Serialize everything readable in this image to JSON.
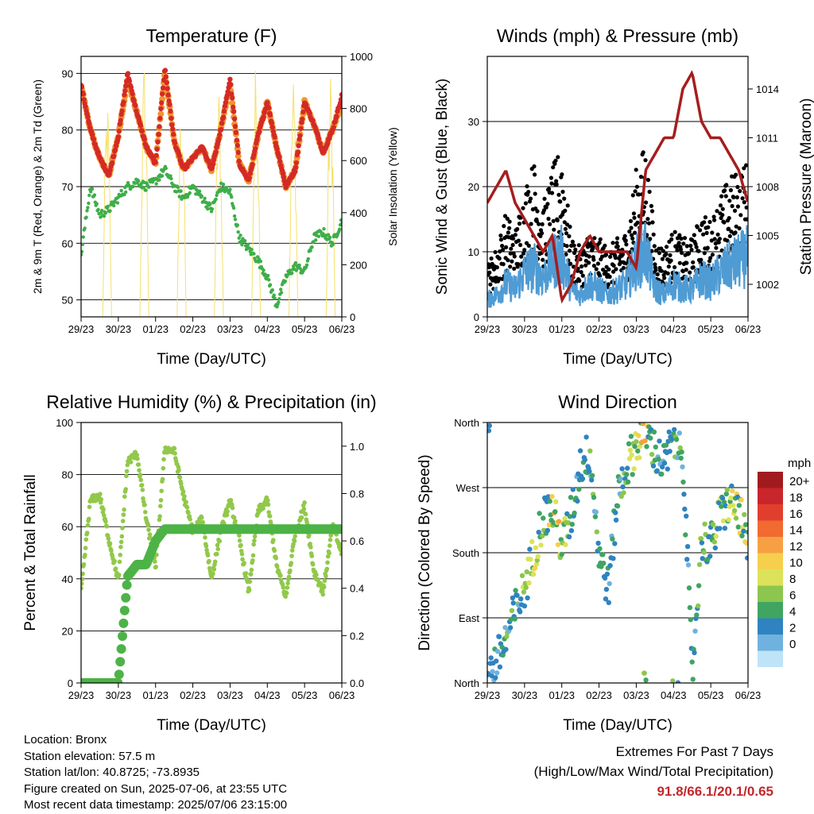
{
  "figure": {
    "time_ticks": [
      "29/23",
      "30/23",
      "01/23",
      "02/23",
      "03/23",
      "04/23",
      "05/23",
      "06/23"
    ],
    "time_xlabel": "Time (Day/UTC)"
  },
  "chart_data": [
    {
      "id": "temperature",
      "type": "line",
      "title": "Temperature (F)",
      "xlabel": "Time (Day/UTC)",
      "ylabel": "2m & 9m T (Red, Orange) & 2m Td (Green)",
      "y2label": "Solar Insolation (Yellow)",
      "ylim": [
        47,
        93
      ],
      "y_ticks": [
        50,
        60,
        70,
        80,
        90
      ],
      "y2lim": [
        0,
        1000
      ],
      "y2_ticks": [
        0,
        200,
        400,
        600,
        800,
        1000
      ],
      "x": [
        0,
        0.25,
        0.5,
        0.75,
        1,
        1.25,
        1.5,
        1.75,
        2,
        2.25,
        2.5,
        2.75,
        3,
        3.25,
        3.5,
        3.75,
        4,
        4.25,
        4.5,
        4.75,
        5,
        5.25,
        5.5,
        5.75,
        6,
        6.25,
        6.5,
        6.75,
        7
      ],
      "series": [
        {
          "name": "2m T",
          "color": "#d42a26",
          "values": [
            88,
            80,
            75,
            72,
            79,
            90,
            83,
            77,
            74,
            91,
            78,
            73,
            75,
            77,
            73,
            80,
            89,
            74,
            71,
            79,
            85,
            77,
            70,
            73,
            85,
            81,
            76,
            80,
            86
          ]
        },
        {
          "name": "9m T",
          "color": "#f0952e",
          "values": [
            88,
            80,
            75,
            72,
            79,
            89,
            83,
            77,
            74,
            90,
            78,
            73,
            75,
            77,
            73,
            80,
            88,
            74,
            71,
            79,
            85,
            77,
            70,
            73,
            85,
            81,
            76,
            80,
            85
          ]
        },
        {
          "name": "2m Td",
          "color": "#3fae49",
          "values": [
            58,
            70,
            65,
            66,
            68,
            70,
            71,
            70,
            71,
            73,
            70,
            68,
            70,
            68,
            66,
            70,
            69,
            61,
            59,
            57,
            54,
            49,
            54,
            56,
            55,
            61,
            62,
            60,
            64
          ]
        },
        {
          "name": "Solar Insolation",
          "color": "#f5e06a",
          "axis": "right",
          "peaks": [
            850,
            1000,
            900,
            900,
            1000,
            950,
            950,
            700
          ]
        }
      ]
    },
    {
      "id": "winds",
      "type": "scatter",
      "title": "Winds (mph) & Pressure (mb)",
      "xlabel": "Time (Day/UTC)",
      "ylabel": "Sonic Wind & Gust (Blue, Black)",
      "y2label": "Station Pressure (Maroon)",
      "ylim": [
        0,
        40
      ],
      "y_ticks": [
        0,
        10,
        20,
        30
      ],
      "y2lim": [
        1000,
        1016
      ],
      "y2_ticks": [
        1002,
        1005,
        1008,
        1011,
        1014
      ],
      "x": [
        0,
        0.25,
        0.5,
        0.75,
        1,
        1.25,
        1.5,
        1.75,
        2,
        2.25,
        2.5,
        2.75,
        3,
        3.25,
        3.5,
        3.75,
        4,
        4.25,
        4.5,
        4.75,
        5,
        5.25,
        5.5,
        5.75,
        6,
        6.25,
        6.5,
        6.75,
        7
      ],
      "series": [
        {
          "name": "Sonic Wind",
          "color": "#4f9bd4",
          "values": [
            3,
            4,
            6,
            5,
            8,
            9,
            7,
            10,
            11,
            5,
            4,
            6,
            5,
            4,
            5,
            6,
            10,
            12,
            5,
            4,
            6,
            5,
            5,
            7,
            6,
            8,
            9,
            10,
            11
          ]
        },
        {
          "name": "Gust",
          "color": "#000000",
          "values": [
            6,
            8,
            12,
            10,
            15,
            18,
            13,
            17,
            20,
            9,
            8,
            10,
            9,
            8,
            9,
            10,
            17,
            20,
            9,
            8,
            10,
            9,
            9,
            12,
            11,
            14,
            16,
            17,
            18
          ]
        },
        {
          "name": "Station Pressure",
          "color": "#a61d1d",
          "axis": "right",
          "values": [
            1007,
            1008,
            1009,
            1007,
            1006,
            1005,
            1004,
            1005,
            1001,
            1002,
            1004,
            1005,
            1004,
            1004,
            1004,
            1004,
            1003,
            1009,
            1010,
            1011,
            1011,
            1014,
            1015,
            1012,
            1011,
            1011,
            1010,
            1009,
            1007
          ]
        }
      ]
    },
    {
      "id": "humidity",
      "type": "line",
      "title": "Relative Humidity (%) & Precipitation (in)",
      "xlabel": "Time (Day/UTC)",
      "ylabel": "Percent & Total Rainfall",
      "ylim": [
        0,
        100
      ],
      "y_ticks": [
        0,
        20,
        40,
        60,
        80,
        100
      ],
      "y2lim": [
        0,
        1.1
      ],
      "y2_ticks": [
        "0.0",
        "0.2",
        "0.4",
        "0.6",
        "0.8",
        "1.0"
      ],
      "x": [
        0,
        0.25,
        0.5,
        0.75,
        1,
        1.25,
        1.5,
        1.75,
        2,
        2.25,
        2.5,
        2.75,
        3,
        3.25,
        3.5,
        3.75,
        4,
        4.25,
        4.5,
        4.75,
        5,
        5.25,
        5.5,
        5.75,
        6,
        6.25,
        6.5,
        6.75,
        7
      ],
      "series": [
        {
          "name": "Relative Humidity",
          "color": "#92c84a",
          "values": [
            35,
            70,
            72,
            55,
            39,
            85,
            88,
            63,
            44,
            90,
            89,
            72,
            58,
            63,
            40,
            58,
            70,
            55,
            35,
            66,
            70,
            45,
            33,
            58,
            68,
            43,
            35,
            60,
            50
          ]
        },
        {
          "name": "Total Precipitation",
          "color": "#4db347",
          "axis": "right",
          "values": [
            0,
            0,
            0,
            0,
            0,
            0.45,
            0.5,
            0.5,
            0.6,
            0.65,
            0.65,
            0.65,
            0.65,
            0.65,
            0.65,
            0.65,
            0.65,
            0.65,
            0.65,
            0.65,
            0.65,
            0.65,
            0.65,
            0.65,
            0.65,
            0.65,
            0.65,
            0.65,
            0.65
          ]
        }
      ]
    },
    {
      "id": "direction",
      "type": "scatter",
      "title": "Wind Direction",
      "xlabel": "Time (Day/UTC)",
      "ylabel": "Direction (Colored By Speed)",
      "ylim": [
        0,
        360
      ],
      "y_ticks": [
        "North",
        "East",
        "South",
        "West",
        "North"
      ],
      "x": [
        0,
        0.25,
        0.5,
        0.75,
        1,
        1.25,
        1.5,
        1.75,
        2,
        2.25,
        2.5,
        2.75,
        3,
        3.25,
        3.5,
        3.75,
        4,
        4.25,
        4.5,
        4.75,
        5,
        5.25,
        5.5,
        5.75,
        6,
        6.25,
        6.5,
        6.75,
        7
      ],
      "direction": [
        10,
        30,
        60,
        100,
        130,
        180,
        230,
        240,
        190,
        230,
        300,
        320,
        180,
        130,
        260,
        300,
        330,
        350,
        320,
        300,
        340,
        320,
        10,
        200,
        190,
        230,
        250,
        240,
        180
      ],
      "speed": [
        3,
        4,
        6,
        5,
        8,
        9,
        7,
        10,
        11,
        5,
        4,
        6,
        5,
        4,
        5,
        6,
        10,
        12,
        5,
        4,
        6,
        5,
        5,
        7,
        6,
        8,
        9,
        10,
        11
      ],
      "legend": {
        "title": "mph",
        "labels": [
          "20+",
          "18",
          "16",
          "14",
          "12",
          "10",
          "8",
          "6",
          "4",
          "2",
          "0"
        ],
        "colors": [
          "#a11a1e",
          "#c8262b",
          "#e23e2d",
          "#f16a30",
          "#f7a043",
          "#f6cf4c",
          "#dce259",
          "#8cc64f",
          "#3fa561",
          "#2f83c0",
          "#6fb2e0",
          "#bfe3f7"
        ]
      }
    }
  ],
  "meta": {
    "location": "Location: Bronx",
    "elevation": "Station elevation: 57.5 m",
    "latlon": "Station lat/lon: 40.8725; -73.8935",
    "created": "Figure created on Sun, 2025-07-06, at 23:55 UTC",
    "recent": "Most recent data timestamp: 2025/07/06 23:15:00"
  },
  "extremes": {
    "title": "Extremes For Past 7 Days",
    "subtitle": "(High/Low/Max Wind/Total Precipitation)",
    "values": "91.8/66.1/20.1/0.65"
  }
}
